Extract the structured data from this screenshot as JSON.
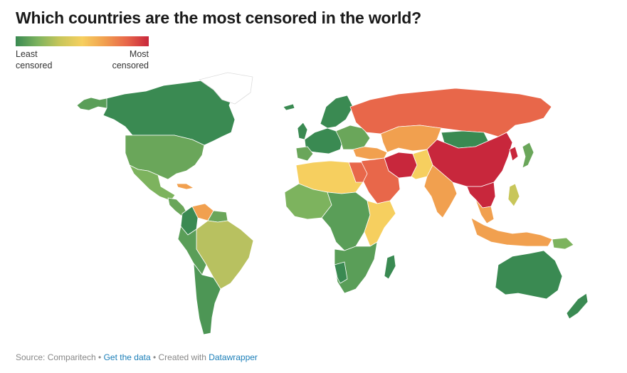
{
  "title": "Which countries are the most censored in the world?",
  "legend": {
    "min_label_1": "Least",
    "min_label_2": "censored",
    "max_label_1": "Most",
    "max_label_2": "censored",
    "colors": [
      "#3a8a52",
      "#7db35e",
      "#c8c65a",
      "#f6cf5f",
      "#f1a04f",
      "#e8674a",
      "#c8273c"
    ]
  },
  "footer": {
    "source": "Source: Comparitech",
    "sep1": " • ",
    "get_data": "Get the data",
    "sep2": " • Created with ",
    "tool": "Datawrapper"
  },
  "map": {
    "regions": [
      {
        "name": "canada",
        "color": "#3a8a52"
      },
      {
        "name": "alaska",
        "color": "#5a9e58"
      },
      {
        "name": "greenland",
        "color": "#ffffff"
      },
      {
        "name": "usa",
        "color": "#6aa65a"
      },
      {
        "name": "mexico",
        "color": "#7db35e"
      },
      {
        "name": "cuba",
        "color": "#f1a04f"
      },
      {
        "name": "central-america",
        "color": "#6aa65a"
      },
      {
        "name": "venezuela",
        "color": "#f1a04f"
      },
      {
        "name": "colombia",
        "color": "#3a8a52"
      },
      {
        "name": "brazil",
        "color": "#b8c160"
      },
      {
        "name": "peru-bolivia",
        "color": "#5a9e58"
      },
      {
        "name": "argentina-chile",
        "color": "#4d9655"
      },
      {
        "name": "europe-west",
        "color": "#3a8a52"
      },
      {
        "name": "scandinavia",
        "color": "#3a8a52"
      },
      {
        "name": "europe-east",
        "color": "#6aa65a"
      },
      {
        "name": "russia",
        "color": "#e8674a"
      },
      {
        "name": "central-asia",
        "color": "#f1a04f"
      },
      {
        "name": "mongolia",
        "color": "#3a8a52"
      },
      {
        "name": "china",
        "color": "#c8273c"
      },
      {
        "name": "turkey",
        "color": "#f1a04f"
      },
      {
        "name": "iran",
        "color": "#c8273c"
      },
      {
        "name": "middle-east",
        "color": "#e8674a"
      },
      {
        "name": "pakistan-afghanistan",
        "color": "#f6cf5f"
      },
      {
        "name": "india",
        "color": "#f1a04f"
      },
      {
        "name": "southeast-asia",
        "color": "#c8273c"
      },
      {
        "name": "indonesia",
        "color": "#f1a04f"
      },
      {
        "name": "japan",
        "color": "#6aa65a"
      },
      {
        "name": "korea",
        "color": "#c8273c"
      },
      {
        "name": "north-africa",
        "color": "#f6cf5f"
      },
      {
        "name": "west-africa",
        "color": "#7db35e"
      },
      {
        "name": "central-africa",
        "color": "#5a9e58"
      },
      {
        "name": "east-africa",
        "color": "#f6cf5f"
      },
      {
        "name": "southern-africa",
        "color": "#5a9e58"
      },
      {
        "name": "madagascar",
        "color": "#3a8a52"
      },
      {
        "name": "australia",
        "color": "#3a8a52"
      },
      {
        "name": "new-zealand",
        "color": "#3a8a52"
      },
      {
        "name": "papua",
        "color": "#7db35e"
      }
    ]
  }
}
